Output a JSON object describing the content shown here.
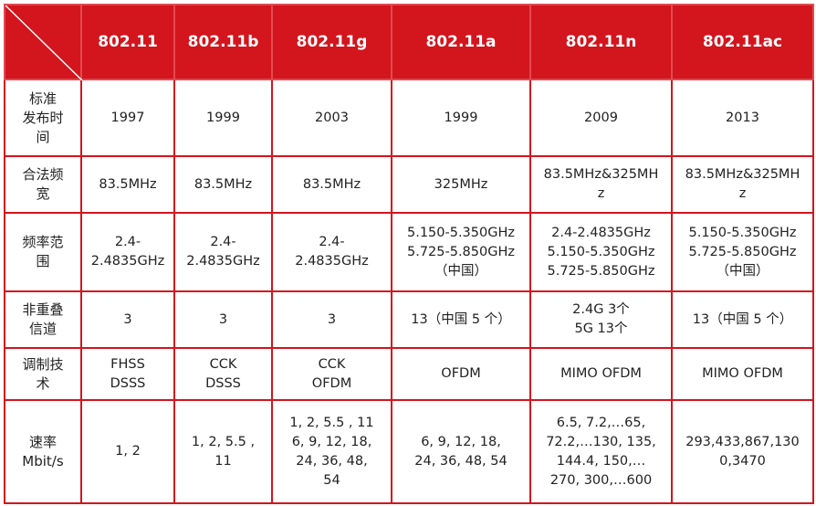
{
  "table": {
    "header": [
      "802.11",
      "802.11b",
      "802.11g",
      "802.11a",
      "802.11n",
      "802.11ac"
    ],
    "rows": [
      {
        "label": [
          "标准",
          "发布时",
          "间"
        ],
        "cells": [
          [
            "1997"
          ],
          [
            "1999"
          ],
          [
            "2003"
          ],
          [
            "1999"
          ],
          [
            "2009"
          ],
          [
            "2013"
          ]
        ]
      },
      {
        "label": [
          "合法频",
          "宽"
        ],
        "cells": [
          [
            "83.5MHz"
          ],
          [
            "83.5MHz"
          ],
          [
            "83.5MHz"
          ],
          [
            "325MHz"
          ],
          [
            "83.5MHz&325MH",
            "z"
          ],
          [
            "83.5MHz&325MH",
            "z"
          ]
        ]
      },
      {
        "label": [
          "频率范",
          "围"
        ],
        "cells": [
          [
            "2.4-",
            "2.4835GHz"
          ],
          [
            "2.4-",
            "2.4835GHz"
          ],
          [
            "2.4-",
            "2.4835GHz"
          ],
          [
            "5.150-5.350GHz",
            "5.725-5.850GHz",
            "（中国）"
          ],
          [
            "2.4-2.4835GHz",
            "5.150-5.350GHz",
            "5.725-5.850GHz"
          ],
          [
            "5.150-5.350GHz",
            "5.725-5.850GHz",
            "（中国）"
          ]
        ]
      },
      {
        "label": [
          "非重叠",
          "信道"
        ],
        "cells": [
          [
            "3"
          ],
          [
            "3"
          ],
          [
            "3"
          ],
          [
            "13（中国 5 个）"
          ],
          [
            "2.4G 3个",
            "5G 13个"
          ],
          [
            "13（中国 5 个）"
          ]
        ]
      },
      {
        "label": [
          "调制技",
          "术"
        ],
        "cells": [
          [
            "FHSS",
            "DSSS"
          ],
          [
            "CCK",
            "DSSS"
          ],
          [
            "CCK",
            "OFDM"
          ],
          [
            "OFDM"
          ],
          [
            "MIMO OFDM"
          ],
          [
            "MIMO OFDM"
          ]
        ]
      },
      {
        "label": [
          "速率",
          "Mbit/s"
        ],
        "cells": [
          [
            "1, 2"
          ],
          [
            "1, 2, 5.5 ,",
            "11"
          ],
          [
            "1, 2, 5.5 , 11",
            "6,  9,  12, 18,",
            "24,  36,  48,",
            "54"
          ],
          [
            "6,  9,  12,  18,",
            "24,  36,  48,  54"
          ],
          [
            "6.5, 7.2,…65,",
            "72.2,…130, 135,",
            "144.4, 150,…",
            "270, 300,…600"
          ],
          [
            "293,433,867,130",
            "0,3470"
          ]
        ]
      }
    ]
  }
}
